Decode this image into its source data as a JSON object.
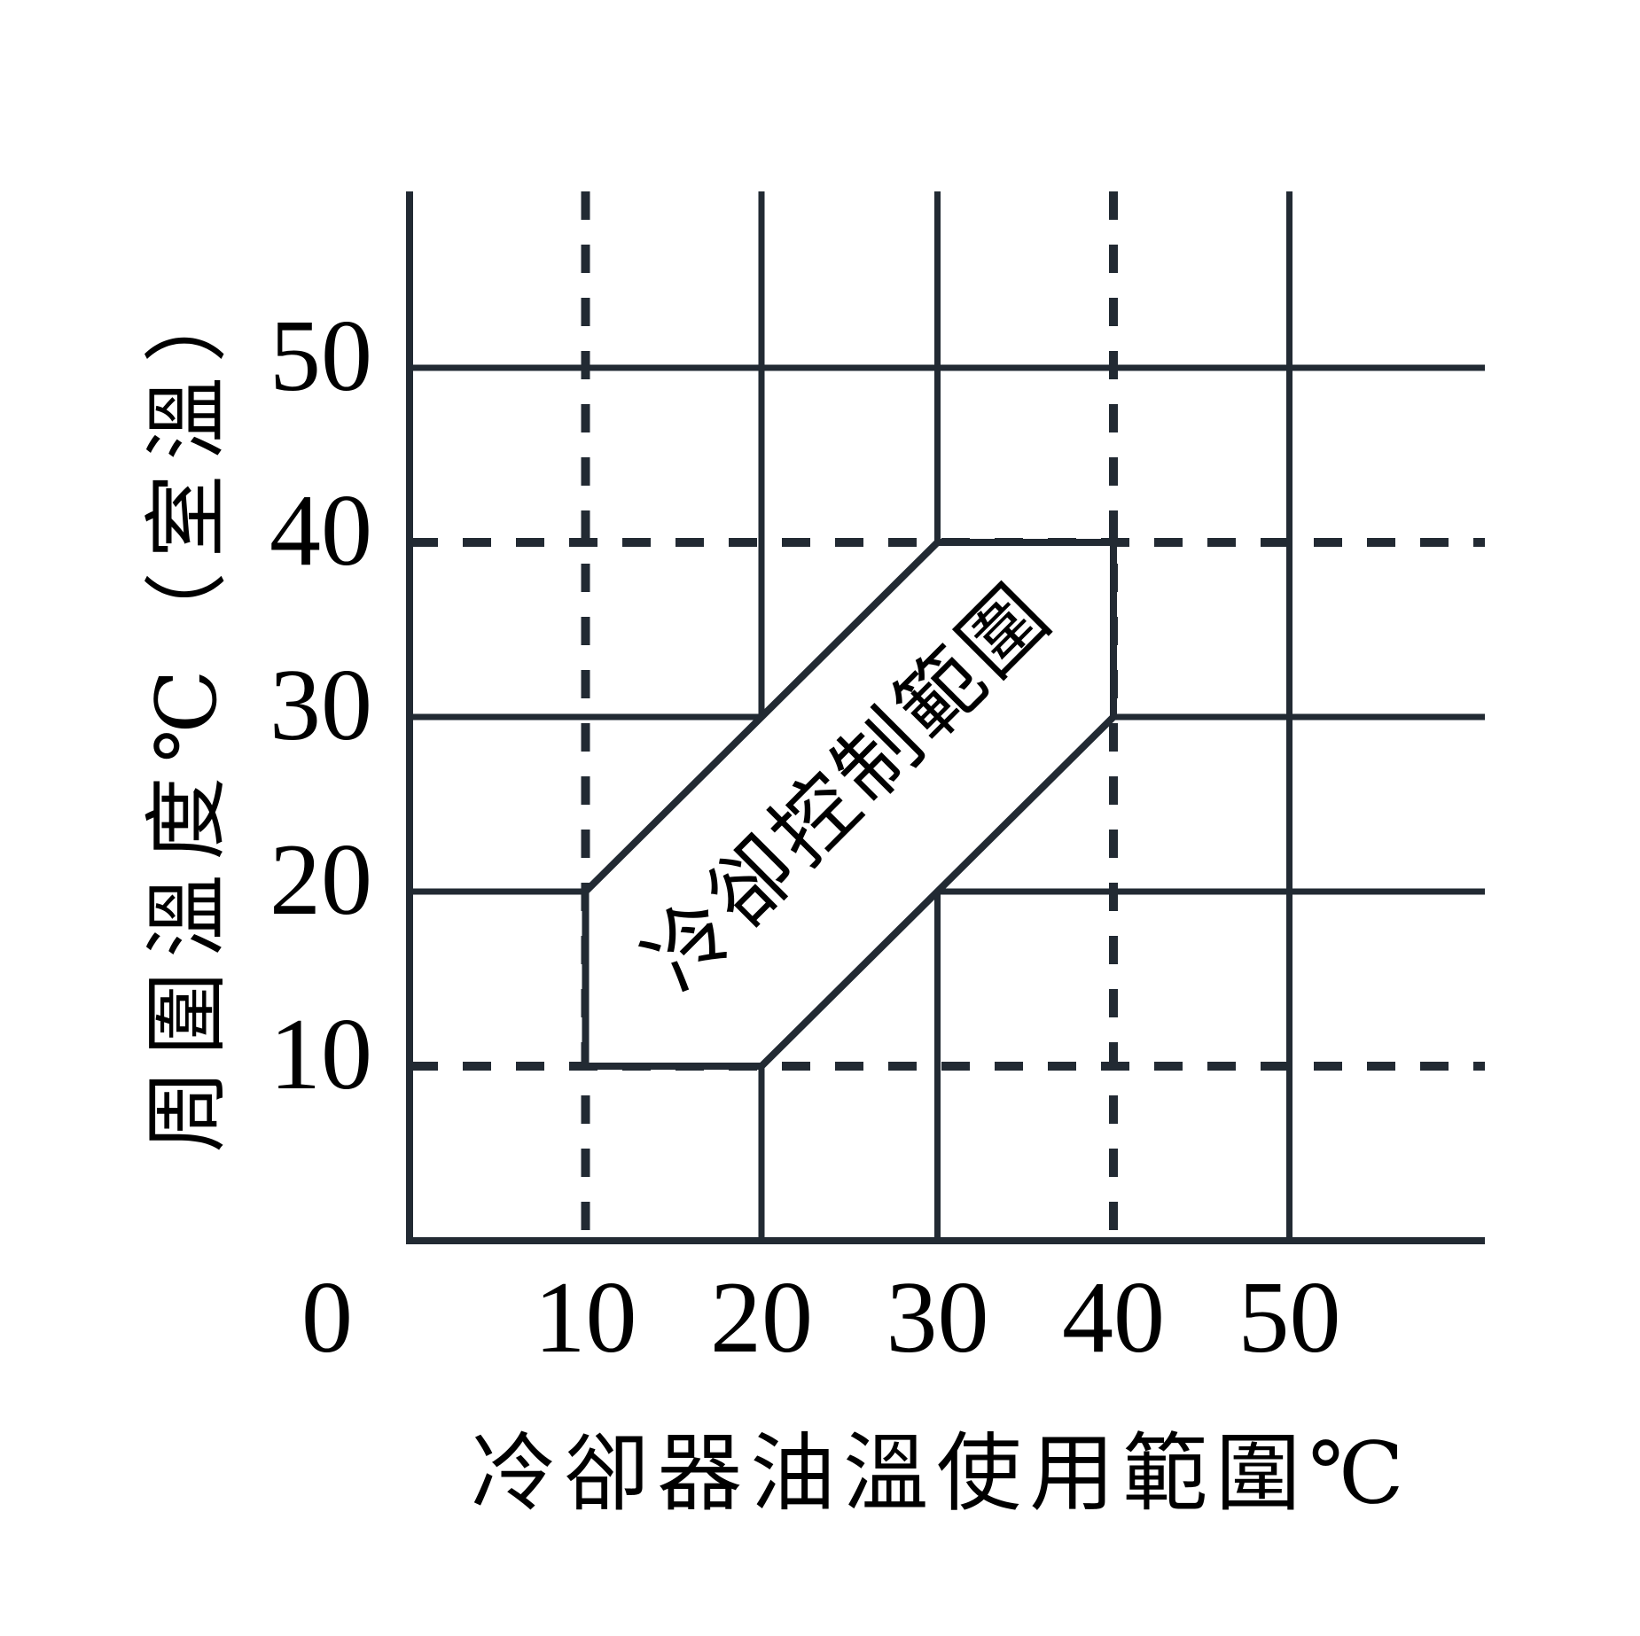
{
  "chart_data": {
    "type": "region-diagram",
    "title": "",
    "xlabel": "冷卻器油溫使用範圍℃",
    "ylabel": "周圍溫度℃（室溫）",
    "xlim": [
      0,
      61
    ],
    "ylim": [
      0,
      60
    ],
    "grid_on": true,
    "legend": null,
    "x_ticks": [
      {
        "value": 0,
        "label": "0"
      },
      {
        "value": 10,
        "label": "10"
      },
      {
        "value": 20,
        "label": "20"
      },
      {
        "value": 30,
        "label": "30"
      },
      {
        "value": 40,
        "label": "40"
      },
      {
        "value": 50,
        "label": "50"
      }
    ],
    "y_ticks": [
      {
        "value": 10,
        "label": "10"
      },
      {
        "value": 20,
        "label": "20"
      },
      {
        "value": 30,
        "label": "30"
      },
      {
        "value": 40,
        "label": "40"
      },
      {
        "value": 50,
        "label": "50"
      }
    ],
    "grid": {
      "solid_x": [
        20,
        30,
        50
      ],
      "dashed_x": [
        10,
        40
      ],
      "solid_y": [
        20,
        30,
        50
      ],
      "dashed_y": [
        10,
        40
      ]
    },
    "region": {
      "label": "冷卻控制範圍",
      "vertices": [
        [
          10,
          10
        ],
        [
          10,
          20
        ],
        [
          30,
          40
        ],
        [
          40,
          40
        ],
        [
          40,
          30
        ],
        [
          20,
          10
        ]
      ]
    },
    "colors": {
      "line": "#222a33",
      "text": "#000000",
      "background": "#ffffff"
    }
  }
}
